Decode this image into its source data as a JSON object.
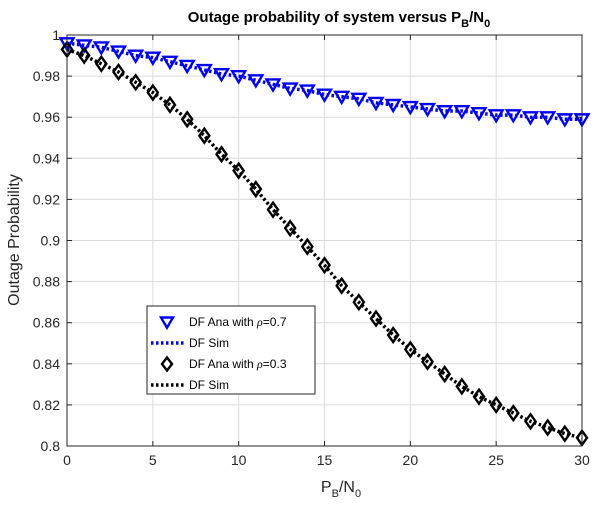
{
  "chart_data": {
    "type": "line",
    "title": "Outage probability of system versus P",
    "title_parts": {
      "main": "Outage probability of system versus P",
      "sub1": "B",
      "mid": "/N",
      "sub2": "0"
    },
    "xlabel_parts": {
      "main": "P",
      "sub1": "B",
      "mid": "/N",
      "sub2": "0"
    },
    "ylabel": "Outage Probability",
    "xlim": [
      0,
      30
    ],
    "ylim": [
      0.8,
      1
    ],
    "xticks": [
      "0",
      "5",
      "10",
      "15",
      "20",
      "25",
      "30"
    ],
    "yticks": [
      "0.8",
      "0.82",
      "0.84",
      "0.86",
      "0.88",
      "0.9",
      "0.92",
      "0.94",
      "0.96",
      "0.98",
      "1"
    ],
    "grid": true,
    "legend_position": "lower-left",
    "x": [
      0,
      1,
      2,
      3,
      4,
      5,
      6,
      7,
      8,
      9,
      10,
      11,
      12,
      13,
      14,
      15,
      16,
      17,
      18,
      19,
      20,
      21,
      22,
      23,
      24,
      25,
      26,
      27,
      28,
      29,
      30
    ],
    "series": [
      {
        "name": "DF Ana with ρ=0.7",
        "name_parts": {
          "prefix": "DF Ana with ",
          "rho": "ρ",
          "suffix": "=0.7"
        },
        "marker": "triangle-down",
        "color": "#0000ff",
        "values": [
          0.996,
          0.995,
          0.994,
          0.992,
          0.99,
          0.989,
          0.987,
          0.985,
          0.983,
          0.981,
          0.98,
          0.978,
          0.976,
          0.974,
          0.973,
          0.971,
          0.97,
          0.969,
          0.967,
          0.966,
          0.965,
          0.964,
          0.963,
          0.963,
          0.962,
          0.961,
          0.961,
          0.96,
          0.96,
          0.959,
          0.959
        ]
      },
      {
        "name": "DF Sim",
        "line_style": "dotted",
        "color": "#0000ff",
        "values": [
          0.996,
          0.995,
          0.994,
          0.992,
          0.99,
          0.989,
          0.987,
          0.985,
          0.983,
          0.981,
          0.98,
          0.978,
          0.976,
          0.974,
          0.973,
          0.971,
          0.97,
          0.969,
          0.967,
          0.966,
          0.965,
          0.964,
          0.963,
          0.963,
          0.962,
          0.961,
          0.961,
          0.96,
          0.96,
          0.959,
          0.959
        ]
      },
      {
        "name": "DF Ana with ρ=0.3",
        "name_parts": {
          "prefix": "DF Ana with ",
          "rho": "ρ",
          "suffix": "=0.3"
        },
        "marker": "diamond",
        "color": "#000000",
        "values": [
          0.993,
          0.99,
          0.986,
          0.982,
          0.977,
          0.972,
          0.966,
          0.959,
          0.951,
          0.942,
          0.934,
          0.925,
          0.915,
          0.906,
          0.897,
          0.888,
          0.878,
          0.87,
          0.862,
          0.854,
          0.847,
          0.841,
          0.835,
          0.829,
          0.824,
          0.82,
          0.816,
          0.812,
          0.809,
          0.806,
          0.804
        ]
      },
      {
        "name": "DF Sim",
        "line_style": "dotted",
        "color": "#000000",
        "values": [
          0.993,
          0.99,
          0.986,
          0.982,
          0.977,
          0.972,
          0.966,
          0.959,
          0.951,
          0.942,
          0.934,
          0.925,
          0.915,
          0.906,
          0.897,
          0.888,
          0.878,
          0.87,
          0.862,
          0.854,
          0.847,
          0.841,
          0.835,
          0.829,
          0.824,
          0.82,
          0.816,
          0.812,
          0.809,
          0.806,
          0.804
        ]
      }
    ]
  }
}
